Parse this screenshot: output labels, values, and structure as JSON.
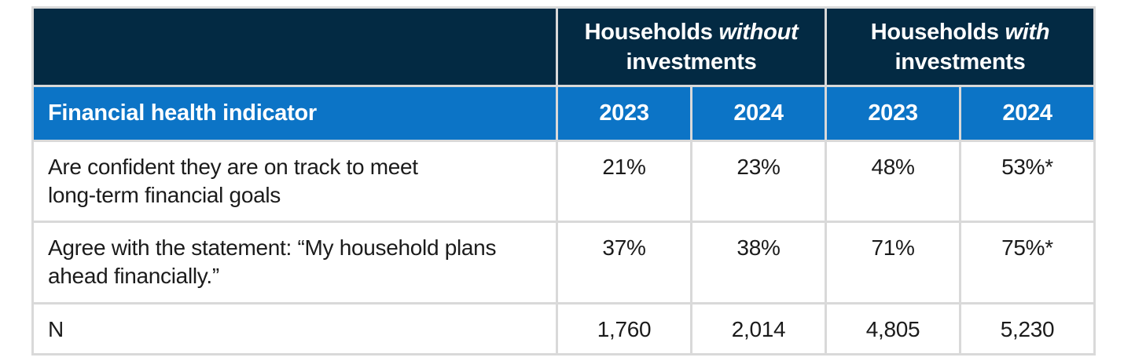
{
  "colors": {
    "navy_header_bg": "#032A43",
    "blue_header_bg": "#0C74C6",
    "grid_border": "#D9D9D9",
    "header_text": "#FFFFFF",
    "body_text": "#1B1B1B"
  },
  "table": {
    "group_headers": [
      {
        "regular": "Households ",
        "italic": "without",
        "line2": "investments"
      },
      {
        "regular": "Households ",
        "italic": "with",
        "line2": "investments"
      }
    ],
    "header_row": {
      "label": "Financial health indicator",
      "years": [
        "2023",
        "2024",
        "2023",
        "2024"
      ]
    },
    "rows": [
      {
        "label": "Are confident they are on track to meet\nlong-term financial goals",
        "values": [
          "21%",
          "23%",
          "48%",
          "53%*"
        ]
      },
      {
        "label": "Agree with the statement: “My household plans\nahead financially.”",
        "values": [
          "37%",
          "38%",
          "71%",
          "75%*"
        ]
      },
      {
        "label": "N",
        "values": [
          "1,760",
          "2,014",
          "4,805",
          "5,230"
        ]
      }
    ]
  }
}
